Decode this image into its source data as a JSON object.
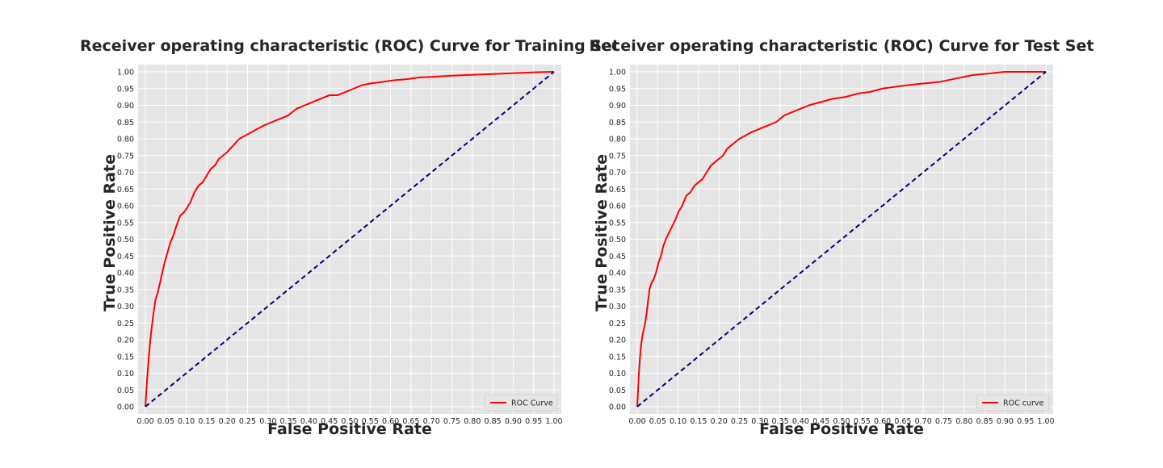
{
  "chart_data": [
    {
      "type": "line",
      "title": "Receiver operating characteristic (ROC) Curve for Training Set",
      "xlabel": "False Positive Rate",
      "ylabel": "True Positive Rate",
      "xlim": [
        0,
        1
      ],
      "ylim": [
        0,
        1
      ],
      "xticks": [
        "0.00",
        "0.05",
        "0.10",
        "0.15",
        "0.20",
        "0.25",
        "0.30",
        "0.35",
        "0.40",
        "0.45",
        "0.50",
        "0.55",
        "0.60",
        "0.65",
        "0.70",
        "0.75",
        "0.80",
        "0.85",
        "0.90",
        "0.95",
        "1.00"
      ],
      "yticks": [
        "0.00",
        "0.05",
        "0.10",
        "0.15",
        "0.20",
        "0.25",
        "0.30",
        "0.35",
        "0.40",
        "0.45",
        "0.50",
        "0.55",
        "0.60",
        "0.65",
        "0.70",
        "0.75",
        "0.80",
        "0.85",
        "0.90",
        "0.95",
        "1.00"
      ],
      "grid": true,
      "legend_position": "lower-right",
      "series": [
        {
          "name": "ROC Curve",
          "color": "#ff0000",
          "style": "solid",
          "x": [
            0.0,
            0.003,
            0.006,
            0.01,
            0.013,
            0.017,
            0.021,
            0.025,
            0.03,
            0.036,
            0.041,
            0.047,
            0.054,
            0.061,
            0.068,
            0.076,
            0.085,
            0.094,
            0.1,
            0.11,
            0.12,
            0.13,
            0.14,
            0.15,
            0.16,
            0.17,
            0.18,
            0.19,
            0.2,
            0.215,
            0.23,
            0.245,
            0.26,
            0.275,
            0.29,
            0.31,
            0.33,
            0.35,
            0.37,
            0.39,
            0.41,
            0.43,
            0.45,
            0.47,
            0.49,
            0.51,
            0.53,
            0.55,
            0.58,
            0.61,
            0.64,
            0.67,
            0.7,
            0.74,
            0.78,
            0.82,
            0.86,
            0.9,
            0.94,
            0.97,
            1.0
          ],
          "y": [
            0.0,
            0.06,
            0.11,
            0.17,
            0.21,
            0.25,
            0.29,
            0.32,
            0.34,
            0.37,
            0.4,
            0.43,
            0.46,
            0.49,
            0.51,
            0.54,
            0.57,
            0.58,
            0.59,
            0.61,
            0.64,
            0.66,
            0.67,
            0.69,
            0.71,
            0.72,
            0.74,
            0.75,
            0.76,
            0.78,
            0.8,
            0.81,
            0.82,
            0.83,
            0.84,
            0.85,
            0.86,
            0.87,
            0.89,
            0.9,
            0.91,
            0.92,
            0.93,
            0.93,
            0.94,
            0.95,
            0.96,
            0.965,
            0.97,
            0.975,
            0.978,
            0.983,
            0.985,
            0.988,
            0.99,
            0.992,
            0.994,
            0.996,
            0.998,
            0.999,
            1.0
          ]
        },
        {
          "color": "#000080",
          "style": "dashed",
          "x": [
            0,
            1
          ],
          "y": [
            0,
            1
          ]
        }
      ]
    },
    {
      "type": "line",
      "title": "Receiver operating characteristic (ROC) Curve for Test Set",
      "xlabel": "False Positive Rate",
      "ylabel": "True Positive Rate",
      "xlim": [
        0,
        1
      ],
      "ylim": [
        0,
        1
      ],
      "xticks": [
        "0.00",
        "0.05",
        "0.10",
        "0.15",
        "0.20",
        "0.25",
        "0.30",
        "0.35",
        "0.40",
        "0.45",
        "0.50",
        "0.55",
        "0.60",
        "0.65",
        "0.70",
        "0.75",
        "0.80",
        "0.85",
        "0.90",
        "0.95",
        "1.00"
      ],
      "yticks": [
        "0.00",
        "0.05",
        "0.10",
        "0.15",
        "0.20",
        "0.25",
        "0.30",
        "0.35",
        "0.40",
        "0.45",
        "0.50",
        "0.55",
        "0.60",
        "0.65",
        "0.70",
        "0.75",
        "0.80",
        "0.85",
        "0.90",
        "0.95",
        "1.00"
      ],
      "grid": true,
      "legend_position": "lower-right",
      "series": [
        {
          "name": "ROC curve",
          "color": "#ff0000",
          "style": "solid",
          "x": [
            0.0,
            0.002,
            0.004,
            0.007,
            0.01,
            0.014,
            0.018,
            0.022,
            0.026,
            0.03,
            0.035,
            0.04,
            0.046,
            0.052,
            0.058,
            0.064,
            0.07,
            0.078,
            0.086,
            0.094,
            0.1,
            0.11,
            0.12,
            0.13,
            0.14,
            0.15,
            0.16,
            0.17,
            0.18,
            0.19,
            0.2,
            0.21,
            0.22,
            0.23,
            0.24,
            0.25,
            0.265,
            0.28,
            0.3,
            0.32,
            0.34,
            0.36,
            0.38,
            0.4,
            0.42,
            0.45,
            0.48,
            0.51,
            0.54,
            0.57,
            0.6,
            0.63,
            0.66,
            0.7,
            0.74,
            0.78,
            0.82,
            0.86,
            0.9,
            0.95,
            1.0
          ],
          "y": [
            0.0,
            0.05,
            0.1,
            0.15,
            0.19,
            0.22,
            0.24,
            0.27,
            0.31,
            0.35,
            0.37,
            0.38,
            0.4,
            0.43,
            0.45,
            0.48,
            0.5,
            0.52,
            0.54,
            0.56,
            0.58,
            0.6,
            0.63,
            0.64,
            0.66,
            0.67,
            0.68,
            0.7,
            0.72,
            0.73,
            0.74,
            0.75,
            0.77,
            0.78,
            0.79,
            0.8,
            0.81,
            0.82,
            0.83,
            0.84,
            0.85,
            0.87,
            0.88,
            0.89,
            0.9,
            0.91,
            0.92,
            0.925,
            0.935,
            0.94,
            0.95,
            0.955,
            0.96,
            0.965,
            0.97,
            0.98,
            0.99,
            0.995,
            1.0,
            1.0,
            1.0
          ]
        },
        {
          "color": "#000080",
          "style": "dashed",
          "x": [
            0,
            1
          ],
          "y": [
            0,
            1
          ]
        }
      ]
    }
  ]
}
